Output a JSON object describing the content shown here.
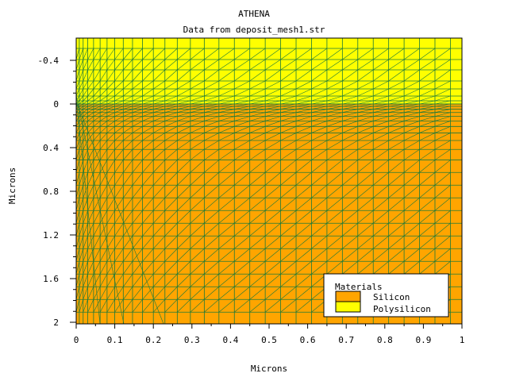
{
  "title": "ATHENA",
  "subtitle": "Data from deposit_mesh1.str",
  "x_axis": {
    "label": "Microns",
    "ticks": [
      {
        "v": 0,
        "label": "0"
      },
      {
        "v": 0.1,
        "label": "0.1"
      },
      {
        "v": 0.2,
        "label": "0.2"
      },
      {
        "v": 0.3,
        "label": "0.3"
      },
      {
        "v": 0.4,
        "label": "0.4"
      },
      {
        "v": 0.5,
        "label": "0.5"
      },
      {
        "v": 0.6,
        "label": "0.6"
      },
      {
        "v": 0.7,
        "label": "0.7"
      },
      {
        "v": 0.8,
        "label": "0.8"
      },
      {
        "v": 0.9,
        "label": "0.9"
      },
      {
        "v": 1,
        "label": "1"
      }
    ]
  },
  "y_axis": {
    "label": "Microns",
    "ticks": [
      {
        "v": -0.4,
        "label": "-0.4"
      },
      {
        "v": 0,
        "label": "0"
      },
      {
        "v": 0.4,
        "label": "0.4"
      },
      {
        "v": 0.8,
        "label": "0.8"
      },
      {
        "v": 1.2,
        "label": "1.2"
      },
      {
        "v": 1.6,
        "label": "1.6"
      },
      {
        "v": 2,
        "label": "2"
      }
    ]
  },
  "legend": {
    "title": "Materials",
    "items": [
      {
        "label": "Silicon",
        "color": "#FFA500"
      },
      {
        "label": "Polysilicon",
        "color": "#FFFF00"
      }
    ]
  },
  "colors": {
    "mesh": "#1a7a3a",
    "silicon": "#FFA500",
    "polysilicon": "#FFFF00"
  },
  "chart_data": {
    "type": "mesh",
    "title": "ATHENA",
    "subtitle": "Data from deposit_mesh1.str",
    "xlabel": "Microns",
    "ylabel": "Microns",
    "xlim": [
      0,
      1
    ],
    "ylim": [
      -0.5,
      2
    ],
    "y_inverted": true,
    "regions": [
      {
        "material": "Polysilicon",
        "y_range": [
          -0.5,
          0
        ]
      },
      {
        "material": "Silicon",
        "y_range": [
          0,
          2
        ]
      }
    ],
    "legend_position": "bottom-right"
  }
}
